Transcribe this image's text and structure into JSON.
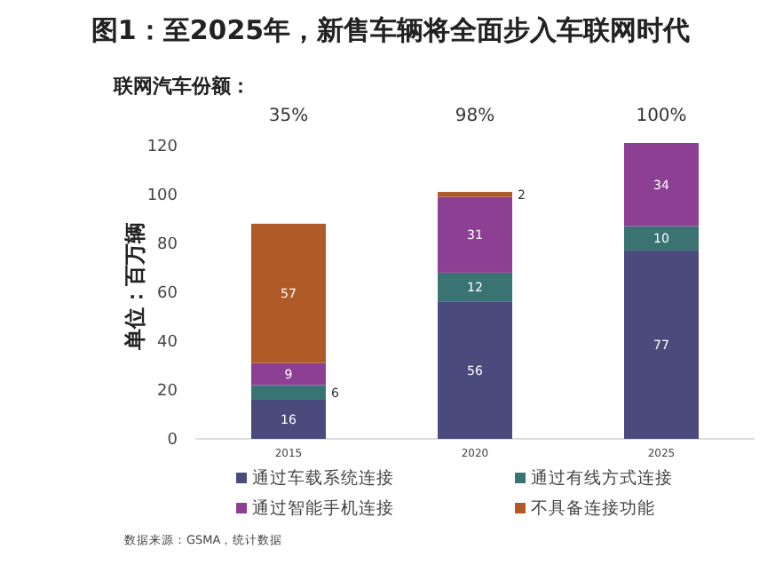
{
  "chart_data": {
    "type": "bar",
    "stacked": true,
    "title": "图1：至2025年，新售车辆将全面步入车联网时代",
    "subtitle": "联网汽车份额：",
    "ylabel": "单位：百万辆",
    "categories": [
      "2015",
      "2020",
      "2025"
    ],
    "series": [
      {
        "name": "通过车载系统连接",
        "color": "#4a4a7c",
        "values": [
          16,
          56,
          77
        ]
      },
      {
        "name": "通过有线方式连接",
        "color": "#3a7472",
        "values": [
          6,
          12,
          10
        ]
      },
      {
        "name": "通过智能手机连接",
        "color": "#8d3f93",
        "values": [
          9,
          31,
          34
        ]
      },
      {
        "name": "不具备连接功能",
        "color": "#b05a28",
        "values": [
          57,
          2,
          null
        ]
      }
    ],
    "ylim": [
      0,
      125
    ],
    "yticks": [
      0,
      20,
      40,
      60,
      80,
      100,
      120
    ],
    "grid": false,
    "legend": "bottom",
    "data_labels": true,
    "annotations": [
      "35%",
      "98%",
      "100%",
      "数据来源：GSMA，统计数据"
    ]
  }
}
